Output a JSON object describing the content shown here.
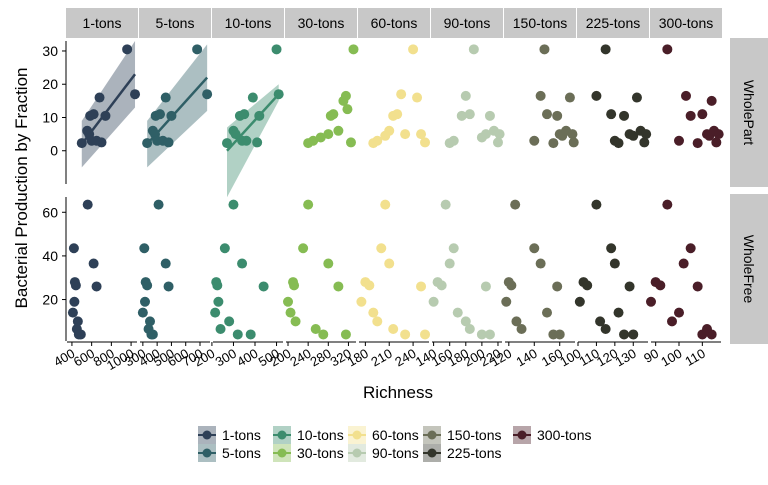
{
  "chart_data": {
    "type": "scatter",
    "title": "",
    "xlabel": "Richness",
    "ylabel": "Bacterial Production by Fraction",
    "row_strips": [
      "WholePart",
      "WholeFree"
    ],
    "grid": false,
    "legend_position": "bottom",
    "panels": [
      {
        "name": "1-tons",
        "color": "#2E4057",
        "x_ticks": [
          400,
          600,
          800,
          1000
        ],
        "x_tick_labels": [
          "400",
          "600",
          "800",
          "1000"
        ],
        "xlim": [
          350,
          1060
        ],
        "part": [
          [
            500,
            2.3
          ],
          [
            555,
            6
          ],
          [
            575,
            5
          ],
          [
            585,
            10.5
          ],
          [
            600,
            3
          ],
          [
            620,
            11
          ],
          [
            650,
            3
          ],
          [
            680,
            16
          ],
          [
            700,
            2.5
          ],
          [
            740,
            10.5
          ],
          [
            960,
            30.5
          ],
          [
            1040,
            17
          ]
        ],
        "free": [
          [
            410,
            14
          ],
          [
            420,
            43.5
          ],
          [
            425,
            19
          ],
          [
            430,
            28
          ],
          [
            440,
            26.5
          ],
          [
            450,
            6.5
          ],
          [
            460,
            10
          ],
          [
            470,
            4
          ],
          [
            490,
            4
          ],
          [
            560,
            63.5
          ],
          [
            620,
            36.5
          ],
          [
            650,
            26
          ]
        ],
        "fit": {
          "x": [
            500,
            1040
          ],
          "y": [
            2,
            23
          ]
        },
        "ci": {
          "upper": [
            9,
            33
          ],
          "lower": [
            -5,
            13
          ]
        }
      },
      {
        "name": "5-tons",
        "color": "#2F5F66",
        "x_ticks": [
          300,
          400,
          500,
          600,
          700
        ],
        "x_tick_labels": [
          "300",
          "400",
          "500",
          "600",
          "700"
        ],
        "xlim": [
          280,
          770
        ],
        "part": [
          [
            330,
            2.3
          ],
          [
            370,
            6
          ],
          [
            385,
            5
          ],
          [
            390,
            10.5
          ],
          [
            400,
            3
          ],
          [
            420,
            11
          ],
          [
            440,
            3
          ],
          [
            460,
            16
          ],
          [
            480,
            2.5
          ],
          [
            500,
            10.5
          ],
          [
            680,
            30.5
          ],
          [
            750,
            17
          ]
        ],
        "free": [
          [
            300,
            14
          ],
          [
            310,
            43.5
          ],
          [
            315,
            19
          ],
          [
            320,
            28
          ],
          [
            330,
            26.5
          ],
          [
            340,
            6.5
          ],
          [
            350,
            10
          ],
          [
            360,
            4
          ],
          [
            370,
            4
          ],
          [
            410,
            63.5
          ],
          [
            460,
            36.5
          ],
          [
            480,
            26
          ]
        ],
        "fit": {
          "x": [
            330,
            750
          ],
          "y": [
            2,
            22
          ]
        },
        "ci": {
          "upper": [
            9,
            32
          ],
          "lower": [
            -5,
            12
          ]
        }
      },
      {
        "name": "10-tons",
        "color": "#3C8C6E",
        "x_ticks": [
          200,
          300,
          400,
          500
        ],
        "x_tick_labels": [
          "200",
          "300",
          "400",
          "500"
        ],
        "xlim": [
          205,
          530
        ],
        "part": [
          [
            270,
            2.3
          ],
          [
            300,
            6
          ],
          [
            310,
            5
          ],
          [
            330,
            10.5
          ],
          [
            340,
            3
          ],
          [
            350,
            11
          ],
          [
            360,
            3
          ],
          [
            390,
            16
          ],
          [
            410,
            2.5
          ],
          [
            420,
            10.5
          ],
          [
            500,
            30.5
          ],
          [
            510,
            17
          ]
        ],
        "free": [
          [
            215,
            14
          ],
          [
            220,
            28
          ],
          [
            225,
            26.5
          ],
          [
            230,
            19
          ],
          [
            240,
            6.5
          ],
          [
            260,
            43.5
          ],
          [
            280,
            10
          ],
          [
            300,
            63.5
          ],
          [
            320,
            4
          ],
          [
            340,
            36.5
          ],
          [
            380,
            4
          ],
          [
            440,
            26
          ]
        ],
        "fit": {
          "x": [
            270,
            510
          ],
          "y": [
            0,
            17
          ]
        },
        "ci": {
          "upper": [
            7,
            20
          ],
          "lower": [
            -14,
            15
          ]
        }
      },
      {
        "name": "30-tons",
        "color": "#86BC53",
        "x_ticks": [
          200,
          240,
          280,
          320
        ],
        "x_tick_labels": [
          "200",
          "240",
          "280",
          "320"
        ],
        "xlim": [
          196,
          335
        ],
        "part": [
          [
            240,
            2.3
          ],
          [
            250,
            3
          ],
          [
            265,
            4
          ],
          [
            280,
            5
          ],
          [
            285,
            10.5
          ],
          [
            290,
            11
          ],
          [
            300,
            6
          ],
          [
            310,
            15
          ],
          [
            315,
            16.5
          ],
          [
            318,
            12.5
          ],
          [
            325,
            2.5
          ],
          [
            330,
            30.5
          ]
        ],
        "free": [
          [
            200,
            19
          ],
          [
            205,
            14
          ],
          [
            210,
            28
          ],
          [
            212,
            26.5
          ],
          [
            215,
            10
          ],
          [
            230,
            43.5
          ],
          [
            240,
            63.5
          ],
          [
            255,
            6.5
          ],
          [
            270,
            4
          ],
          [
            280,
            36.5
          ],
          [
            300,
            26
          ],
          [
            315,
            4
          ]
        ],
        "fit": null,
        "ci": null
      },
      {
        "name": "60-tons",
        "color": "#F2E08E",
        "x_ticks": [
          180,
          210,
          240
        ],
        "x_tick_labels": [
          "180",
          "210",
          "240"
        ],
        "xlim": [
          172,
          260
        ],
        "part": [
          [
            190,
            2.3
          ],
          [
            195,
            3
          ],
          [
            205,
            4.5
          ],
          [
            210,
            6
          ],
          [
            215,
            10.5
          ],
          [
            220,
            11
          ],
          [
            225,
            17
          ],
          [
            230,
            5
          ],
          [
            240,
            30.5
          ],
          [
            245,
            16
          ],
          [
            250,
            5
          ],
          [
            255,
            2.5
          ]
        ],
        "free": [
          [
            175,
            19
          ],
          [
            180,
            28
          ],
          [
            185,
            26.5
          ],
          [
            190,
            14
          ],
          [
            195,
            10
          ],
          [
            200,
            43.5
          ],
          [
            205,
            63.5
          ],
          [
            210,
            36.5
          ],
          [
            215,
            6.5
          ],
          [
            230,
            4
          ],
          [
            250,
            26
          ],
          [
            255,
            4
          ]
        ],
        "fit": null,
        "ci": null
      },
      {
        "name": "90-tons",
        "color": "#B7CBB0",
        "x_ticks": [
          140,
          160,
          180,
          200,
          220
        ],
        "x_tick_labels": [
          "140",
          "160",
          "180",
          "200",
          "220"
        ],
        "xlim": [
          138,
          225
        ],
        "part": [
          [
            160,
            2.3
          ],
          [
            165,
            3
          ],
          [
            175,
            10.5
          ],
          [
            180,
            16.5
          ],
          [
            185,
            11
          ],
          [
            190,
            30.5
          ],
          [
            200,
            4
          ],
          [
            205,
            5
          ],
          [
            210,
            10.5
          ],
          [
            215,
            6
          ],
          [
            220,
            2.5
          ],
          [
            222,
            5
          ]
        ],
        "free": [
          [
            140,
            19
          ],
          [
            145,
            28
          ],
          [
            150,
            26.5
          ],
          [
            155,
            63.5
          ],
          [
            160,
            36.5
          ],
          [
            165,
            43.5
          ],
          [
            170,
            14
          ],
          [
            180,
            10
          ],
          [
            185,
            6.5
          ],
          [
            200,
            4
          ],
          [
            205,
            26
          ],
          [
            210,
            4
          ]
        ],
        "fit": null,
        "ci": null
      },
      {
        "name": "150-tons",
        "color": "#6B6E57",
        "x_ticks": [
          120,
          140,
          160
        ],
        "x_tick_labels": [
          "120",
          "140",
          "160"
        ],
        "xlim": [
          117,
          172
        ],
        "part": [
          [
            140,
            3
          ],
          [
            145,
            16.5
          ],
          [
            148,
            30.5
          ],
          [
            150,
            11
          ],
          [
            155,
            2.3
          ],
          [
            158,
            10.5
          ],
          [
            160,
            5
          ],
          [
            162,
            4.5
          ],
          [
            165,
            6
          ],
          [
            168,
            16
          ],
          [
            170,
            5
          ],
          [
            171,
            2.5
          ]
        ],
        "free": [
          [
            118,
            19
          ],
          [
            120,
            28
          ],
          [
            122,
            26.5
          ],
          [
            125,
            63.5
          ],
          [
            126,
            10
          ],
          [
            130,
            6.5
          ],
          [
            140,
            43.5
          ],
          [
            145,
            36.5
          ],
          [
            150,
            14
          ],
          [
            155,
            4
          ],
          [
            158,
            26
          ],
          [
            160,
            4
          ]
        ],
        "fit": null,
        "ci": null
      },
      {
        "name": "225-tons",
        "color": "#33352B",
        "x_ticks": [
          100,
          110,
          120,
          130
        ],
        "x_tick_labels": [
          "100",
          "110",
          "120",
          "130"
        ],
        "xlim": [
          100,
          138
        ],
        "part": [
          [
            110,
            16.5
          ],
          [
            115,
            30.5
          ],
          [
            118,
            11
          ],
          [
            120,
            3
          ],
          [
            122,
            2.3
          ],
          [
            125,
            10.5
          ],
          [
            128,
            5
          ],
          [
            130,
            4.5
          ],
          [
            132,
            16
          ],
          [
            134,
            6
          ],
          [
            136,
            2.5
          ],
          [
            137,
            5
          ]
        ],
        "free": [
          [
            101,
            19
          ],
          [
            103,
            28
          ],
          [
            105,
            26.5
          ],
          [
            110,
            63.5
          ],
          [
            112,
            10
          ],
          [
            115,
            6.5
          ],
          [
            118,
            43.5
          ],
          [
            120,
            36.5
          ],
          [
            122,
            14
          ],
          [
            125,
            4
          ],
          [
            128,
            26
          ],
          [
            130,
            4
          ]
        ],
        "fit": null,
        "ci": null
      },
      {
        "name": "300-tons",
        "color": "#4A1E28",
        "x_ticks": [
          90,
          100,
          110
        ],
        "x_tick_labels": [
          "90",
          "100",
          "110"
        ],
        "xlim": [
          88,
          118
        ],
        "part": [
          [
            95,
            30.5
          ],
          [
            100,
            3
          ],
          [
            103,
            16.5
          ],
          [
            105,
            10.5
          ],
          [
            108,
            2.3
          ],
          [
            110,
            11
          ],
          [
            112,
            5
          ],
          [
            113,
            4.5
          ],
          [
            114,
            15
          ],
          [
            115,
            6
          ],
          [
            116,
            2.5
          ],
          [
            117,
            5
          ]
        ],
        "free": [
          [
            88,
            19
          ],
          [
            90,
            28
          ],
          [
            92,
            26.5
          ],
          [
            95,
            63.5
          ],
          [
            97,
            10
          ],
          [
            100,
            14
          ],
          [
            102,
            36.5
          ],
          [
            105,
            43.5
          ],
          [
            108,
            26
          ],
          [
            110,
            4
          ],
          [
            112,
            6.5
          ],
          [
            114,
            4
          ]
        ],
        "fit": null,
        "ci": null
      }
    ],
    "rows": [
      {
        "name": "WholePart",
        "y_ticks": [
          0,
          10,
          20,
          30
        ],
        "y_tick_labels": [
          "0",
          "10",
          "20",
          "30"
        ],
        "ylim": [
          -10,
          33
        ]
      },
      {
        "name": "WholeFree",
        "y_ticks": [
          20,
          40,
          60
        ],
        "y_tick_labels": [
          "20",
          "40",
          "60"
        ],
        "ylim": [
          1,
          67
        ]
      }
    ],
    "legend": [
      {
        "label": "1-tons",
        "color": "#2E4057"
      },
      {
        "label": "5-tons",
        "color": "#2F5F66"
      },
      {
        "label": "10-tons",
        "color": "#3C8C6E"
      },
      {
        "label": "30-tons",
        "color": "#86BC53"
      },
      {
        "label": "60-tons",
        "color": "#F2E08E"
      },
      {
        "label": "90-tons",
        "color": "#B7CBB0"
      },
      {
        "label": "150-tons",
        "color": "#6B6E57"
      },
      {
        "label": "225-tons",
        "color": "#33352B"
      },
      {
        "label": "300-tons",
        "color": "#4A1E28"
      }
    ],
    "colors": {
      "strip_bg": "#C8C8C8",
      "axis": "#000000",
      "ci_fill_opacity": "0.4"
    }
  }
}
